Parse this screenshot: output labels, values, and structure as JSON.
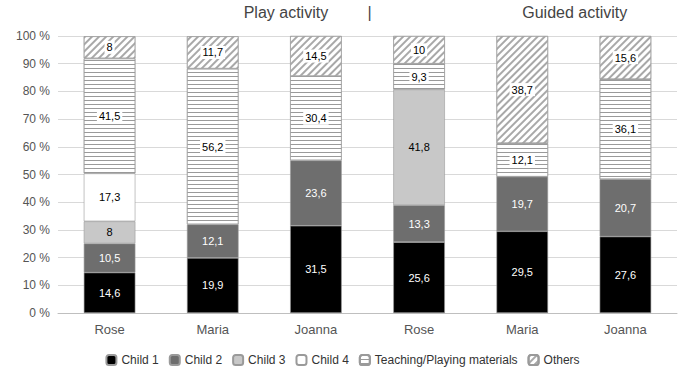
{
  "chart_data": {
    "type": "bar",
    "annotations": [
      "Play activity",
      "|",
      "Guided activity"
    ],
    "categories": [
      "Rose",
      "Maria",
      "Joanna",
      "Rose",
      "Maria",
      "Joanna"
    ],
    "stacked": true,
    "data_labels": true,
    "grid": true,
    "legend": "bottom",
    "ylim": [
      0,
      100
    ],
    "yticks": [
      {
        "value": 0,
        "label": "0 %"
      },
      {
        "value": 10,
        "label": "10 %"
      },
      {
        "value": 20,
        "label": "20 %"
      },
      {
        "value": 30,
        "label": "30 %"
      },
      {
        "value": 40,
        "label": "40 %"
      },
      {
        "value": 50,
        "label": "50 %"
      },
      {
        "value": 60,
        "label": "60 %"
      },
      {
        "value": 70,
        "label": "70 %"
      },
      {
        "value": 80,
        "label": "80 %"
      },
      {
        "value": 90,
        "label": "90 %"
      },
      {
        "value": 100,
        "label": "100 %"
      }
    ],
    "series": [
      {
        "name": "Child 1",
        "color": "#000000",
        "values": [
          14.6,
          19.9,
          31.5,
          25.6,
          29.5,
          27.6
        ],
        "value_labels": [
          "14,6",
          "19,9",
          "31,5",
          "25,6",
          "29,5",
          "27,6"
        ]
      },
      {
        "name": "Child 2",
        "color": "#6e6e6e",
        "values": [
          10.5,
          12.1,
          23.6,
          13.3,
          19.7,
          20.7
        ],
        "value_labels": [
          "10,5",
          "12,1",
          "23,6",
          "13,3",
          "19,7",
          "20,7"
        ]
      },
      {
        "name": "Child 3",
        "color": "#c8c8c8",
        "values": [
          8,
          null,
          null,
          41.8,
          null,
          null
        ],
        "value_labels": [
          "8",
          null,
          null,
          "41,8",
          null,
          null
        ]
      },
      {
        "name": "Child 4",
        "color": "#ffffff",
        "values": [
          17.3,
          null,
          null,
          null,
          null,
          null
        ],
        "value_labels": [
          "17,3",
          null,
          null,
          null,
          null,
          null
        ]
      },
      {
        "name": "Teaching/Playing materials",
        "color": "#ffffff",
        "line_style": "horizontal",
        "values": [
          41.5,
          56.2,
          30.4,
          9.3,
          12.1,
          36.1
        ],
        "value_labels": [
          "41,5",
          "56,2",
          "30,4",
          "9,3",
          "12,1",
          "36,1"
        ]
      },
      {
        "name": "Others",
        "color": "#ffffff",
        "line_style": "diagonal",
        "values": [
          8,
          11.7,
          14.5,
          10,
          38.7,
          15.6
        ],
        "value_labels": [
          "8",
          "11,7",
          "14,5",
          "10",
          "38,7",
          "15,6"
        ]
      }
    ]
  }
}
